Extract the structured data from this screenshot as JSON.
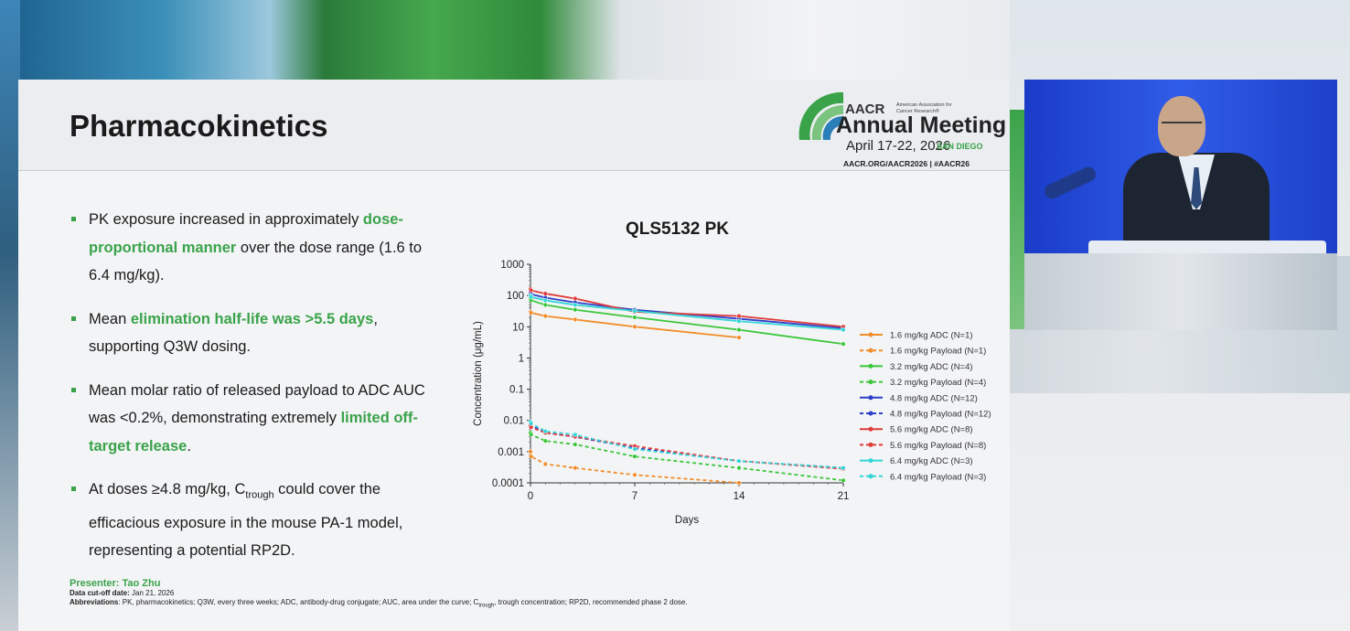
{
  "slide": {
    "title": "Pharmacokinetics",
    "logo": {
      "aacr": "AACR",
      "association": "American Association for Cancer Research®",
      "meeting": "Annual Meeting",
      "dates": "April 17-22, 2026",
      "city": "SAN DIEGO",
      "url": "AACR.ORG/AACR2026  |  #AACR26"
    },
    "bullets": [
      {
        "segments": [
          {
            "text": "PK exposure increased in approximately ",
            "hl": false
          },
          {
            "text": "dose-proportional manner",
            "hl": true
          },
          {
            "text": " over the dose range (1.6 to 6.4 mg/kg).",
            "hl": false
          }
        ]
      },
      {
        "segments": [
          {
            "text": "Mean ",
            "hl": false
          },
          {
            "text": "elimination half-life was >5.5 days",
            "hl": true
          },
          {
            "text": ", supporting Q3W dosing.",
            "hl": false
          }
        ]
      },
      {
        "segments": [
          {
            "text": "Mean molar ratio of released payload to ADC AUC was <0.2%, demonstrating extremely ",
            "hl": false
          },
          {
            "text": "limited off-target release",
            "hl": true
          },
          {
            "text": ".",
            "hl": false
          }
        ]
      },
      {
        "segments": [
          {
            "text": "At doses ≥4.8 mg/kg, C",
            "hl": false
          },
          {
            "text": "trough",
            "sub": true
          },
          {
            "text": " could cover the efficacious exposure in the mouse PA-1 model, representing a potential RP2D.",
            "hl": false
          }
        ]
      }
    ],
    "footer": {
      "presenter": "Presenter: Tao Zhu",
      "cutoff_label": "Data cut-off date:",
      "cutoff_value": " Jan 21, 2026",
      "abbr_label": "Abbreviations",
      "abbr_text_1": ": PK, pharmacokinetics; Q3W, every three weeks; ADC, antibody-drug conjugate; AUC, area under the curve; C",
      "abbr_sub": "trough",
      "abbr_text_2": ", trough concentration; RP2D, recommended phase 2 dose."
    }
  },
  "chart_data": {
    "type": "line",
    "title": "QLS5132 PK",
    "xlabel": "Days",
    "ylabel": "Concentration (μg/mL)",
    "yscale": "log",
    "ylim": [
      0.0001,
      1000
    ],
    "xlim": [
      0,
      21
    ],
    "xticks": [
      "0",
      "7",
      "14",
      "21"
    ],
    "yticks": [
      "0.0001",
      "0.001",
      "0.01",
      "0.1",
      "1",
      "10",
      "100",
      "1000"
    ],
    "legend_position": "right",
    "series": [
      {
        "name": "1.6 mg/kg ADC (N=1)",
        "color": "#f28c28",
        "dashed": false,
        "x": [
          0,
          0.04,
          1,
          3,
          7,
          14
        ],
        "y": [
          30,
          28,
          22,
          17,
          10,
          4.5
        ]
      },
      {
        "name": "1.6 mg/kg Payload (N=1)",
        "color": "#f28c28",
        "dashed": true,
        "x": [
          0,
          0.04,
          1,
          3,
          7,
          14
        ],
        "y": [
          0.001,
          0.0007,
          0.0004,
          0.0003,
          0.00018,
          0.0001
        ]
      },
      {
        "name": "3.2 mg/kg ADC (N=4)",
        "color": "#3ac63a",
        "dashed": false,
        "x": [
          0,
          0.04,
          1,
          3,
          7,
          14,
          21
        ],
        "y": [
          80,
          70,
          50,
          35,
          20,
          8,
          2.8
        ]
      },
      {
        "name": "3.2 mg/kg Payload (N=4)",
        "color": "#3ac63a",
        "dashed": true,
        "x": [
          0,
          0.04,
          1,
          3,
          7,
          14,
          21
        ],
        "y": [
          0.004,
          0.0035,
          0.0022,
          0.0017,
          0.0007,
          0.0003,
          0.00012
        ]
      },
      {
        "name": "4.8 mg/kg ADC (N=12)",
        "color": "#2e3ec9",
        "dashed": false,
        "x": [
          0,
          0.04,
          1,
          3,
          7,
          14,
          21
        ],
        "y": [
          120,
          110,
          85,
          60,
          35,
          18,
          9
        ]
      },
      {
        "name": "4.8 mg/kg Payload (N=12)",
        "color": "#2e3ec9",
        "dashed": true,
        "x": [
          0,
          0.04,
          1,
          3,
          7,
          14,
          21
        ],
        "y": [
          0.008,
          0.007,
          0.004,
          0.003,
          0.0013,
          0.0005,
          0.0003
        ]
      },
      {
        "name": "5.6 mg/kg ADC (N=8)",
        "color": "#e03a3a",
        "dashed": false,
        "x": [
          0,
          0.04,
          1,
          3,
          7,
          14,
          21
        ],
        "y": [
          160,
          145,
          115,
          80,
          30,
          22,
          10
        ]
      },
      {
        "name": "5.6 mg/kg Payload (N=8)",
        "color": "#e03a3a",
        "dashed": true,
        "x": [
          0,
          0.04,
          1,
          3,
          7,
          14,
          21
        ],
        "y": [
          0.007,
          0.006,
          0.004,
          0.003,
          0.0015,
          0.0005,
          0.00028
        ]
      },
      {
        "name": "6.4 mg/kg ADC (N=3)",
        "color": "#33d6d6",
        "dashed": false,
        "x": [
          0,
          0.04,
          1,
          3,
          7,
          14,
          21
        ],
        "y": [
          100,
          90,
          70,
          50,
          32,
          15,
          8
        ]
      },
      {
        "name": "6.4 mg/kg Payload (N=3)",
        "color": "#33d6d6",
        "dashed": true,
        "x": [
          0,
          0.04,
          1,
          3,
          7,
          14,
          21
        ],
        "y": [
          0.009,
          0.008,
          0.0045,
          0.0035,
          0.0012,
          0.0005,
          0.0003
        ]
      }
    ]
  }
}
